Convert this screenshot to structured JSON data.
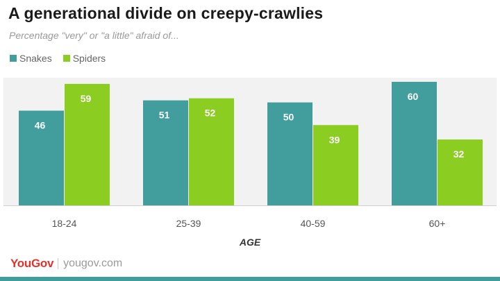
{
  "title": "A generational divide on creepy-crawlies",
  "subtitle": "Percentage \"very\" or \"a little\" afraid of...",
  "brand": {
    "logo": "YouGov",
    "url": "yougov.com"
  },
  "colors": {
    "snakes": "#429e9c",
    "spiders": "#8ccd22",
    "plot_bg": "#f2f2f2",
    "accent_bar": "#3f9e9c"
  },
  "chart_data": {
    "type": "bar",
    "categories": [
      "18-24",
      "25-39",
      "40-59",
      "60+"
    ],
    "series": [
      {
        "name": "Snakes",
        "values": [
          46,
          51,
          50,
          60
        ]
      },
      {
        "name": "Spiders",
        "values": [
          59,
          52,
          39,
          32
        ]
      }
    ],
    "xlabel": "AGE",
    "ylabel": "",
    "ylim": [
      0,
      62
    ],
    "grid": false,
    "legend": "top-left",
    "data_labels": true
  }
}
